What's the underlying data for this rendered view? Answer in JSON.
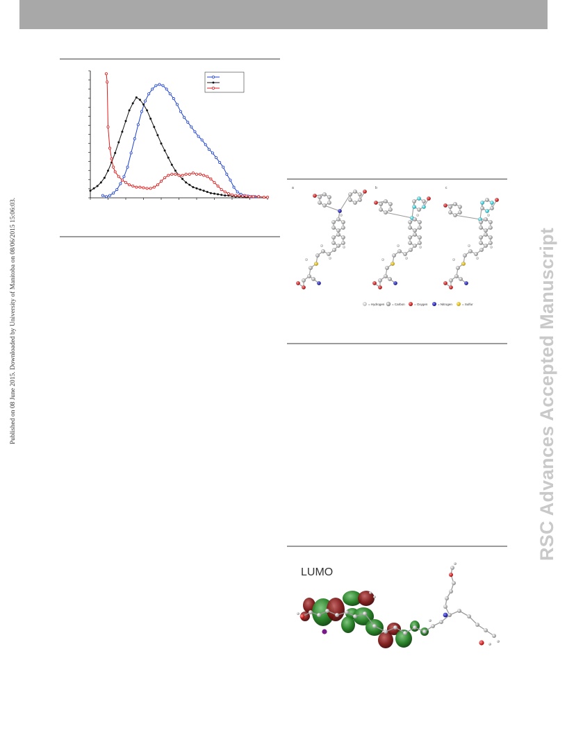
{
  "sidebar_left_text": "Published on 08 June 2015. Downloaded by University of Manitoba on 08/06/2015 15:06:03.",
  "sidebar_right_text": "RSC Advances Accepted Manuscript",
  "lumo_label": "LUMO",
  "structure_legend": [
    "= Hydrogen",
    "= Carbon",
    "= Oxygen",
    "= Nitrogen",
    "= Sulfur"
  ],
  "structure_panel_labels": [
    "a",
    "b",
    "c"
  ],
  "colors": {
    "blue_series": "#1a3fd0",
    "black_series": "#111111",
    "red_series": "#e01818",
    "watermark": "#c9c9c9",
    "header_bar": "#a8a8a8"
  },
  "chart_data": {
    "type": "line",
    "title": "",
    "xlabel": "",
    "ylabel": "",
    "xlim": [
      0,
      100
    ],
    "ylim": [
      0,
      1
    ],
    "grid": false,
    "legend_position": "top-right",
    "series": [
      {
        "color": "#1a3fd0",
        "marker": "open-circle",
        "x": [
          7,
          9,
          11,
          13,
          15,
          17,
          19,
          21,
          23,
          25,
          27,
          29,
          31,
          33,
          35,
          37,
          39,
          41,
          43,
          45,
          47,
          49,
          51,
          53,
          55,
          57,
          59,
          61,
          63,
          65,
          67,
          69,
          71,
          73,
          75,
          77,
          79,
          81,
          83,
          85,
          87,
          89,
          91,
          93,
          95
        ],
        "y": [
          0.02,
          0.01,
          0.02,
          0.04,
          0.07,
          0.12,
          0.18,
          0.26,
          0.38,
          0.5,
          0.62,
          0.73,
          0.82,
          0.88,
          0.92,
          0.95,
          0.96,
          0.95,
          0.92,
          0.88,
          0.84,
          0.79,
          0.73,
          0.68,
          0.64,
          0.6,
          0.56,
          0.52,
          0.49,
          0.45,
          0.41,
          0.38,
          0.34,
          0.3,
          0.26,
          0.2,
          0.15,
          0.09,
          0.05,
          0.03,
          0.02,
          0.015,
          0.01,
          0.01,
          0.01
        ]
      },
      {
        "color": "#111111",
        "marker": "filled-dot",
        "x": [
          0,
          2,
          4,
          6,
          8,
          10,
          12,
          14,
          16,
          18,
          20,
          22,
          24,
          26,
          28,
          30,
          32,
          34,
          36,
          38,
          40,
          42,
          44,
          46,
          48,
          50,
          52,
          54,
          56,
          58,
          60,
          62,
          64,
          66,
          68,
          70,
          72,
          74,
          76,
          78,
          80,
          82,
          84,
          86,
          88,
          90
        ],
        "y": [
          0.06,
          0.08,
          0.1,
          0.13,
          0.17,
          0.23,
          0.3,
          0.38,
          0.47,
          0.56,
          0.65,
          0.74,
          0.8,
          0.85,
          0.83,
          0.79,
          0.74,
          0.67,
          0.6,
          0.53,
          0.46,
          0.4,
          0.34,
          0.28,
          0.23,
          0.19,
          0.16,
          0.13,
          0.11,
          0.09,
          0.08,
          0.07,
          0.06,
          0.05,
          0.04,
          0.035,
          0.03,
          0.025,
          0.02,
          0.02,
          0.015,
          0.01,
          0.01,
          0.008,
          0.005,
          0.005
        ]
      },
      {
        "color": "#e01818",
        "marker": "open-circle",
        "x": [
          9,
          9.5,
          10,
          11,
          12,
          13,
          14,
          16,
          18,
          20,
          22,
          24,
          26,
          28,
          30,
          32,
          34,
          36,
          38,
          40,
          42,
          44,
          46,
          48,
          50,
          52,
          54,
          56,
          58,
          60,
          62,
          64,
          66,
          68,
          70,
          72,
          74,
          76,
          78,
          80,
          82,
          84,
          86,
          88,
          90,
          92,
          95,
          98,
          100
        ],
        "y": [
          1.05,
          0.98,
          0.6,
          0.42,
          0.33,
          0.26,
          0.22,
          0.18,
          0.15,
          0.13,
          0.11,
          0.1,
          0.09,
          0.09,
          0.085,
          0.08,
          0.08,
          0.09,
          0.11,
          0.14,
          0.17,
          0.19,
          0.2,
          0.2,
          0.19,
          0.19,
          0.2,
          0.2,
          0.21,
          0.2,
          0.2,
          0.19,
          0.18,
          0.16,
          0.13,
          0.1,
          0.07,
          0.05,
          0.035,
          0.025,
          0.02,
          0.018,
          0.015,
          0.015,
          0.01,
          0.01,
          0.01,
          0.005,
          0.005
        ]
      }
    ]
  }
}
